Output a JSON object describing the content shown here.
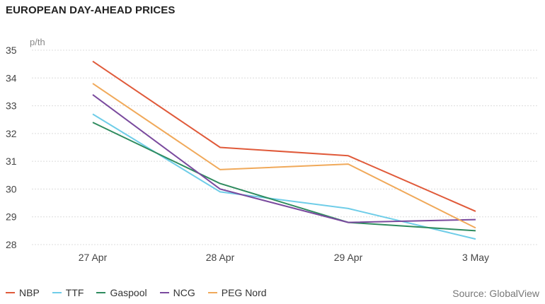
{
  "chart_data": {
    "type": "line",
    "title": "EUROPEAN DAY-AHEAD PRICES",
    "unit_label": "p/th",
    "categories": [
      "27 Apr",
      "28 Apr",
      "29 Apr",
      "3 May"
    ],
    "y_ticks": [
      "28",
      "29",
      "30",
      "31",
      "32",
      "33",
      "34",
      "35"
    ],
    "ylim": [
      28,
      35
    ],
    "grid": true,
    "legend_position": "bottom-left",
    "series": [
      {
        "name": "NBP",
        "color": "#e05a3a",
        "values": [
          34.6,
          31.5,
          31.2,
          29.2
        ]
      },
      {
        "name": "TTF",
        "color": "#6fcde8",
        "values": [
          32.7,
          29.9,
          29.3,
          28.2
        ]
      },
      {
        "name": "Gaspool",
        "color": "#2e8b5e",
        "values": [
          32.4,
          30.2,
          28.8,
          28.5
        ]
      },
      {
        "name": "NCG",
        "color": "#7a4a9e",
        "values": [
          33.4,
          30.0,
          28.8,
          28.9
        ]
      },
      {
        "name": "PEG Nord",
        "color": "#f0a95a",
        "values": [
          33.8,
          30.7,
          30.9,
          28.6
        ]
      }
    ],
    "source": "Source: GlobalView"
  }
}
